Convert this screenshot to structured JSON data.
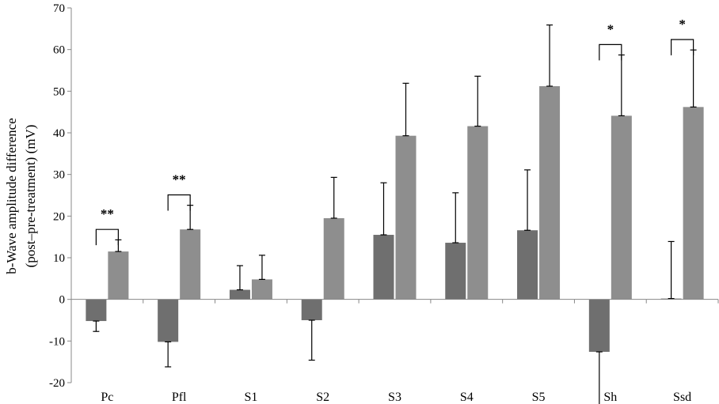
{
  "chart_data": {
    "type": "bar",
    "categories": [
      "Pc",
      "Pfl",
      "S1",
      "S2",
      "S3",
      "S4",
      "S5",
      "Sh",
      "Ssd"
    ],
    "ylabel_lines": [
      "b-Wave amplitude difference",
      "(post–pre-treatment) (mV)"
    ],
    "ylim": [
      -20,
      70
    ],
    "yticks": [
      -20,
      -10,
      0,
      10,
      20,
      30,
      40,
      50,
      60,
      70
    ],
    "grid": false,
    "colors": [
      "#6f6f6f",
      "#8e8e8e"
    ],
    "series": [
      {
        "values": [
          -5.2,
          -10.2,
          2.3,
          -5.0,
          15.5,
          13.6,
          16.6,
          -12.6,
          0.2
        ],
        "errors": [
          2.5,
          6.0,
          5.8,
          9.6,
          12.5,
          12.0,
          14.5,
          14.2,
          13.7
        ]
      },
      {
        "values": [
          11.5,
          16.8,
          4.8,
          19.5,
          39.3,
          41.6,
          51.2,
          44.1,
          46.2
        ],
        "errors": [
          2.8,
          5.8,
          5.8,
          9.8,
          12.6,
          12.0,
          14.7,
          14.6,
          13.7
        ]
      }
    ],
    "significance": [
      {
        "category": "Pc",
        "label": "**"
      },
      {
        "category": "Pfl",
        "label": "**"
      },
      {
        "category": "Sh",
        "label": "*"
      },
      {
        "category": "Ssd",
        "label": "*"
      }
    ]
  }
}
